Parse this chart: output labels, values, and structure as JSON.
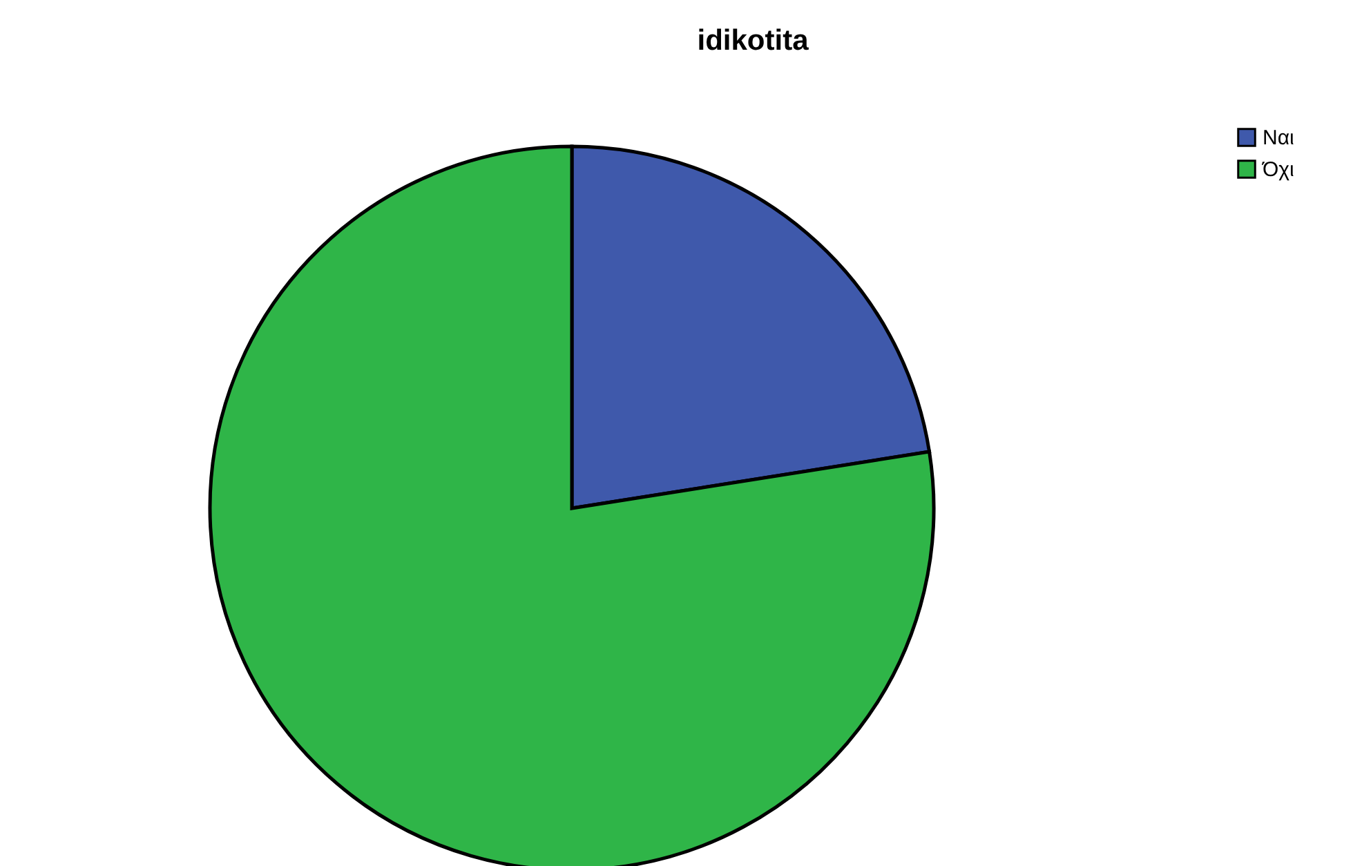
{
  "chart_data": {
    "type": "pie",
    "title": "idikotita",
    "categories": [
      "Ναι",
      "Όχι"
    ],
    "values": [
      22.5,
      77.5
    ],
    "colors": [
      "#3f59ab",
      "#2fb548"
    ],
    "legend": "top right"
  }
}
